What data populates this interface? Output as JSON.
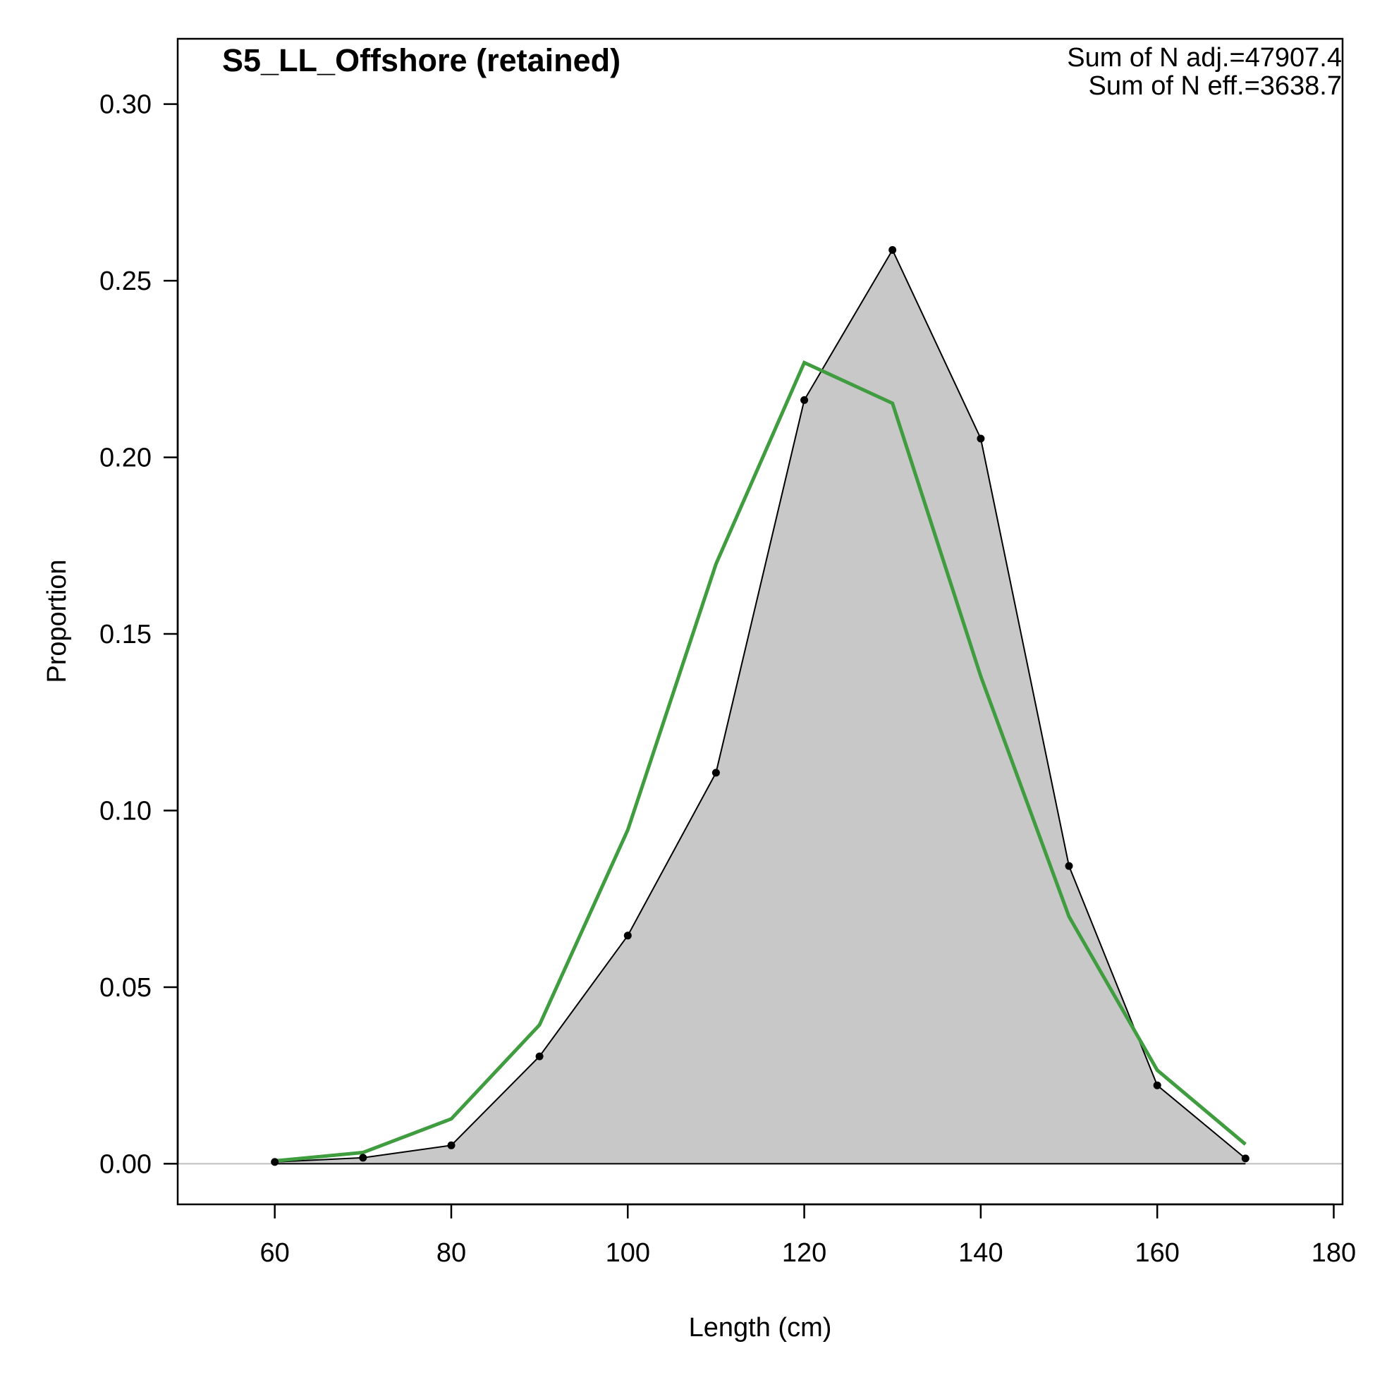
{
  "chart_data": {
    "type": "area",
    "title": "S5_LL_Offshore (retained)",
    "xlabel": "Length (cm)",
    "ylabel": "Proportion",
    "xlim": [
      49,
      181
    ],
    "ylim": [
      -0.0115,
      0.3185
    ],
    "xticks": [
      "60",
      "80",
      "100",
      "120",
      "140",
      "160",
      "180"
    ],
    "yticks": [
      "0.00",
      "0.05",
      "0.10",
      "0.15",
      "0.20",
      "0.25",
      "0.30"
    ],
    "annotations": [
      "Sum of N adj.=47907.4",
      "Sum of N eff.=3638.7"
    ],
    "grid": false,
    "x": [
      60,
      70,
      80,
      90,
      100,
      110,
      120,
      130,
      140,
      150,
      160,
      170
    ],
    "series": [
      {
        "role": "observed",
        "style": "filled-polygon-with-points",
        "fill_color": "#c8c8c8",
        "line_color": "#000000",
        "values": [
          0.0005,
          0.0017,
          0.0052,
          0.0304,
          0.0646,
          0.1107,
          0.2162,
          0.2587,
          0.2053,
          0.0843,
          0.0222,
          0.0015
        ]
      },
      {
        "role": "expected",
        "style": "line",
        "line_color": "#3f9c3f",
        "values": [
          0.0008,
          0.0032,
          0.0127,
          0.0393,
          0.0945,
          0.1698,
          0.2268,
          0.2153,
          0.138,
          0.07,
          0.0265,
          0.0055
        ]
      }
    ],
    "zero_line_color": "#bebebe"
  }
}
